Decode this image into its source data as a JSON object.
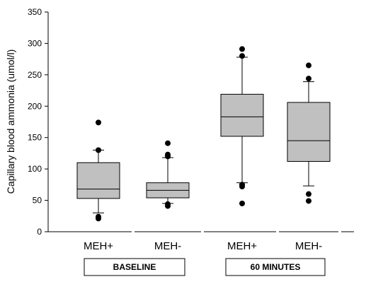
{
  "chart_data": {
    "type": "box",
    "ylabel": "Capillary blood ammonia (umol/l)",
    "ylim": [
      0,
      350
    ],
    "yticks": [
      0,
      50,
      100,
      150,
      200,
      250,
      300,
      350
    ],
    "grid": false,
    "categories": [
      "MEH+",
      "MEH-",
      "MEH+",
      "MEH-"
    ],
    "groups": [
      {
        "label": "BASELINE",
        "categories": [
          0,
          1
        ]
      },
      {
        "label": "60 MINUTES",
        "categories": [
          2,
          3
        ]
      }
    ],
    "series": [
      {
        "category": "MEH+",
        "group": "BASELINE",
        "whisker_low": 30,
        "q1": 53,
        "median": 68,
        "q3": 110,
        "whisker_high": 130,
        "outliers": [
          21,
          24,
          130,
          174
        ]
      },
      {
        "category": "MEH-",
        "group": "BASELINE",
        "whisker_low": 45,
        "q1": 54,
        "median": 66,
        "q3": 78,
        "whisker_high": 118,
        "outliers": [
          41,
          44,
          120,
          123,
          141
        ]
      },
      {
        "category": "MEH+",
        "group": "60 MINUTES",
        "whisker_low": 78,
        "q1": 152,
        "median": 183,
        "q3": 219,
        "whisker_high": 278,
        "outliers": [
          45,
          72,
          75,
          280,
          291
        ]
      },
      {
        "category": "MEH-",
        "group": "60 MINUTES",
        "whisker_low": 73,
        "q1": 112,
        "median": 145,
        "q3": 206,
        "whisker_high": 239,
        "outliers": [
          49,
          60,
          244,
          265
        ]
      }
    ]
  }
}
